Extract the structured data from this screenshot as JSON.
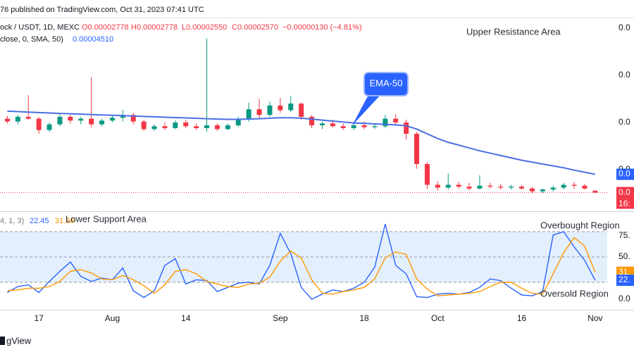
{
  "header": {
    "published": "76 published on TradingView.com, Oct 31, 2023 07:41 UTC",
    "symbol": "ock / USDT, 1D, MEXC",
    "ohlc": [
      "O0.00002778",
      "H0.00002778",
      "L0.00002550",
      "C0.00002570"
    ],
    "change": "−0.00000130 (−4.81%)"
  },
  "annotations": {
    "upper": "Upper Resistance Area",
    "ema": "EMA-50",
    "lower": "Lower Support Area",
    "overbought": "Overbought Region",
    "oversold": "Oversold Region"
  },
  "footer": "gView",
  "chart_data": [
    {
      "type": "candlestick",
      "up_color": "#089981",
      "down_color": "#f23645",
      "open": [
        0.000104,
        0.000101,
        0.000106,
        0.000104,
        9.2e-05,
        9.8e-05,
        0.000106,
        0.000102,
        0.000104,
        9.8e-05,
        0.000102,
        0.000105,
        0.000108,
        0.000101,
        9.3e-05,
        9.6e-05,
        9.4e-05,
        0.0001,
        9.6e-05,
        9.4e-05,
        9.7e-05,
        9.3e-05,
        9.7e-05,
        0.000104,
        0.000114,
        0.000108,
        0.000118,
        0.000113,
        0.00012,
        0.000106,
        9.7e-05,
        9.9e-05,
        9.6e-05,
        9.4e-05,
        9.7e-05,
        9.5e-05,
        9.6e-05,
        0.000104,
        0.0001,
        8.8e-05,
        5.6e-05,
        3.4e-05,
        3.1e-05,
        3.4e-05,
        3.2e-05,
        3e-05,
        3.3e-05,
        3.2e-05,
        3.1e-05,
        3.2e-05,
        3e-05,
        2.7e-05,
        2.9e-05,
        3.1e-05,
        3.4e-05,
        3.3e-05,
        2.778e-05
      ],
      "high": [
        0.000107,
        0.000108,
        0.000129,
        0.000106,
        0.0001,
        0.00011,
        0.000108,
        0.000106,
        0.000148,
        0.000104,
        0.000107,
        0.000113,
        0.00011,
        0.000103,
        9.8e-05,
        0.0001,
        0.000102,
        0.000103,
        9.9e-05,
        0.000189,
        9.9e-05,
        9.9e-05,
        0.000106,
        0.000121,
        0.000125,
        0.000122,
        0.000126,
        0.000128,
        0.000121,
        0.000108,
        0.000101,
        0.000103,
        9.9e-05,
        0.0001,
        0.000101,
        9.9e-05,
        0.000108,
        0.000109,
        0.000103,
        9e-05,
        5.8e-05,
        3.8e-05,
        4.6e-05,
        3.7e-05,
        3.6e-05,
        4.4e-05,
        3.6e-05,
        3.5e-05,
        3.4e-05,
        3.4e-05,
        3.2e-05,
        3e-05,
        3.3e-05,
        3.6e-05,
        3.7e-05,
        3.5e-05,
        2.778e-05
      ],
      "low": [
        9.9e-05,
        9.8e-05,
        0.000103,
        8.8e-05,
        9e-05,
        9.6e-05,
        9.9e-05,
        9.8e-05,
        9.5e-05,
        9.6e-05,
        0.0001,
        0.000101,
        9.8e-05,
        9.1e-05,
        9.1e-05,
        9.2e-05,
        9.3e-05,
        9.4e-05,
        9.2e-05,
        9e-05,
        9.1e-05,
        9.2e-05,
        9.5e-05,
        0.000101,
        0.000104,
        0.000106,
        0.00011,
        0.000111,
        0.000103,
        9.4e-05,
        9.3e-05,
        9.5e-05,
        9.2e-05,
        9.2e-05,
        9.3e-05,
        9.3e-05,
        9.4e-05,
        9.7e-05,
        8.2e-05,
        5.1e-05,
        3e-05,
        2.8e-05,
        2.9e-05,
        3e-05,
        2.8e-05,
        2.9e-05,
        3e-05,
        2.9e-05,
        2.9e-05,
        2.9e-05,
        2.5e-05,
        2.5e-05,
        2.7e-05,
        2.9e-05,
        3e-05,
        2.9e-05,
        2.55e-05
      ],
      "close": [
        0.000101,
        0.000106,
        0.000104,
        9.2e-05,
        9.8e-05,
        0.000106,
        0.000102,
        0.000104,
        9.8e-05,
        0.000102,
        0.000105,
        0.000108,
        0.000101,
        9.3e-05,
        9.6e-05,
        9.4e-05,
        0.0001,
        9.6e-05,
        9.4e-05,
        9.7e-05,
        9.3e-05,
        9.7e-05,
        0.000104,
        0.000114,
        0.000108,
        0.000118,
        0.000113,
        0.00012,
        0.000106,
        9.7e-05,
        9.9e-05,
        9.6e-05,
        9.4e-05,
        9.7e-05,
        9.5e-05,
        9.6e-05,
        0.000104,
        0.0001,
        8.8e-05,
        5.6e-05,
        3.4e-05,
        3.1e-05,
        3.4e-05,
        3.2e-05,
        3e-05,
        3.3e-05,
        3.2e-05,
        3.1e-05,
        3.2e-05,
        3e-05,
        2.7e-05,
        2.9e-05,
        3.1e-05,
        3.4e-05,
        3.3e-05,
        3e-05,
        2.57e-05
      ],
      "ma": {
        "legend": "close, 0, SMA, 50)",
        "value_text": "0.00004510",
        "color": "#4a6fe3",
        "values": [
          0.000112,
          0.0001115,
          0.000111,
          0.0001105,
          0.00011,
          0.0001096,
          0.0001092,
          0.0001088,
          0.0001084,
          0.000108,
          0.0001076,
          0.0001072,
          0.0001068,
          0.0001064,
          0.000106,
          0.0001056,
          0.0001052,
          0.0001048,
          0.0001044,
          0.000104,
          0.0001036,
          0.0001033,
          0.0001033,
          0.0001036,
          0.000104,
          0.0001045,
          0.000105,
          0.000105,
          0.0001045,
          0.0001035,
          0.0001025,
          0.0001015,
          0.0001005,
          9.95e-05,
          9.9e-05,
          9.85e-05,
          9.8e-05,
          9.75e-05,
          9.65e-05,
          9.3e-05,
          8.8e-05,
          8.3e-05,
          7.9e-05,
          7.6e-05,
          7.3e-05,
          7e-05,
          6.75e-05,
          6.5e-05,
          6.25e-05,
          6e-05,
          5.8e-05,
          5.6e-05,
          5.4e-05,
          5.2e-05,
          4.95e-05,
          4.73e-05,
          4.51e-05
        ]
      },
      "ylim": [
        6e-06,
        0.0002111
      ],
      "yticks": [
        {
          "value": 0.0002,
          "label": "0.0"
        },
        {
          "value": 0.00015,
          "label": "0.0"
        },
        {
          "value": 0.0001,
          "label": "0.0"
        },
        {
          "value": 5e-05,
          "label": "0.0"
        }
      ],
      "price_tags": [
        {
          "value": 4.51e-05,
          "label": "0.0",
          "color": "#2962ff"
        },
        {
          "value": 2.57e-05,
          "label": "0.0",
          "color": "#f23645"
        }
      ],
      "countdown": "16:"
    },
    {
      "type": "line",
      "legend": "4, 1, 3)",
      "categories": [
        null,
        null,
        null,
        "17",
        null,
        null,
        null,
        null,
        null,
        null,
        "Aug",
        null,
        null,
        null,
        null,
        null,
        null,
        "14",
        null,
        null,
        null,
        null,
        null,
        null,
        null,
        null,
        "Sep",
        null,
        null,
        null,
        null,
        null,
        null,
        null,
        "18",
        null,
        null,
        null,
        null,
        null,
        null,
        "Oct",
        null,
        null,
        null,
        null,
        null,
        null,
        null,
        "16",
        null,
        null,
        null,
        null,
        null,
        null,
        "Nov"
      ],
      "series": [
        {
          "color": "#2962ff",
          "values": [
            8,
            15,
            17,
            8,
            21,
            33,
            44,
            27,
            21,
            25,
            23,
            37,
            10,
            2,
            10,
            40,
            48,
            18,
            23,
            22,
            9,
            14,
            19,
            20,
            18,
            40,
            78,
            54,
            14,
            0,
            6,
            11,
            9,
            13,
            20,
            38,
            89,
            40,
            30,
            3,
            2,
            6,
            7,
            6,
            8,
            14,
            24,
            22,
            13,
            5,
            4,
            9,
            76,
            80,
            62,
            46,
            22.45
          ]
        },
        {
          "color": "#ff9800",
          "values": [
            10,
            11,
            13,
            13,
            15,
            21,
            33,
            35,
            31,
            24,
            23,
            28,
            23,
            16,
            7,
            17,
            33,
            35,
            30,
            21,
            18,
            15,
            14,
            18,
            19,
            26,
            45,
            57,
            49,
            23,
            7,
            6,
            9,
            11,
            14,
            24,
            49,
            56,
            53,
            24,
            12,
            4,
            5,
            6,
            7,
            9,
            15,
            20,
            20,
            13,
            7,
            6,
            30,
            55,
            73,
            63,
            31.86
          ]
        }
      ],
      "ylim": [
        -12.5,
        101.7
      ],
      "yticks": [
        {
          "value": 75,
          "label": "75."
        },
        {
          "value": 50,
          "label": "50."
        },
        {
          "value": 0,
          "label": "0.0"
        }
      ],
      "levels": [
        80,
        50,
        20
      ],
      "band_color": "#e3effd",
      "tags": [
        {
          "value": 31.86,
          "label": "31.",
          "color": "#ff9800"
        },
        {
          "value": 22.45,
          "label": "22.",
          "color": "#2962ff"
        }
      ]
    }
  ]
}
